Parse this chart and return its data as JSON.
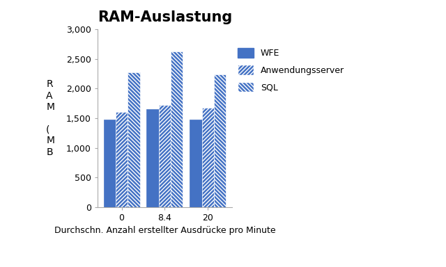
{
  "title": "RAM-Auslastung",
  "ylabel_lines": [
    "R",
    "A",
    "M",
    "",
    "̂",
    "M",
    "B",
    "̲"
  ],
  "xlabel": "Durchschn. Anzahl erstellter Ausdrücke pro Minute",
  "categories": [
    "0",
    "8.4",
    "20"
  ],
  "series": {
    "WFE": [
      1480,
      1650,
      1480
    ],
    "Anwendungsserver": [
      1600,
      1720,
      1680
    ],
    "SQL": [
      2270,
      2620,
      2240
    ]
  },
  "bar_color": "#4472C4",
  "hatch_color": "white",
  "ylim": [
    0,
    3000
  ],
  "yticks": [
    0,
    500,
    1000,
    1500,
    2000,
    2500,
    3000
  ],
  "ytick_labels": [
    "0",
    "500",
    "1,000",
    "1,500",
    "2,000",
    "2,500",
    "3,000"
  ],
  "bar_width": 0.28,
  "title_fontsize": 15,
  "label_fontsize": 9,
  "tick_fontsize": 9,
  "legend_fontsize": 9,
  "hatch_patterns": [
    null,
    "//",
    "\\\\"
  ],
  "series_names": [
    "WFE",
    "Anwendungsserver",
    "SQL"
  ]
}
